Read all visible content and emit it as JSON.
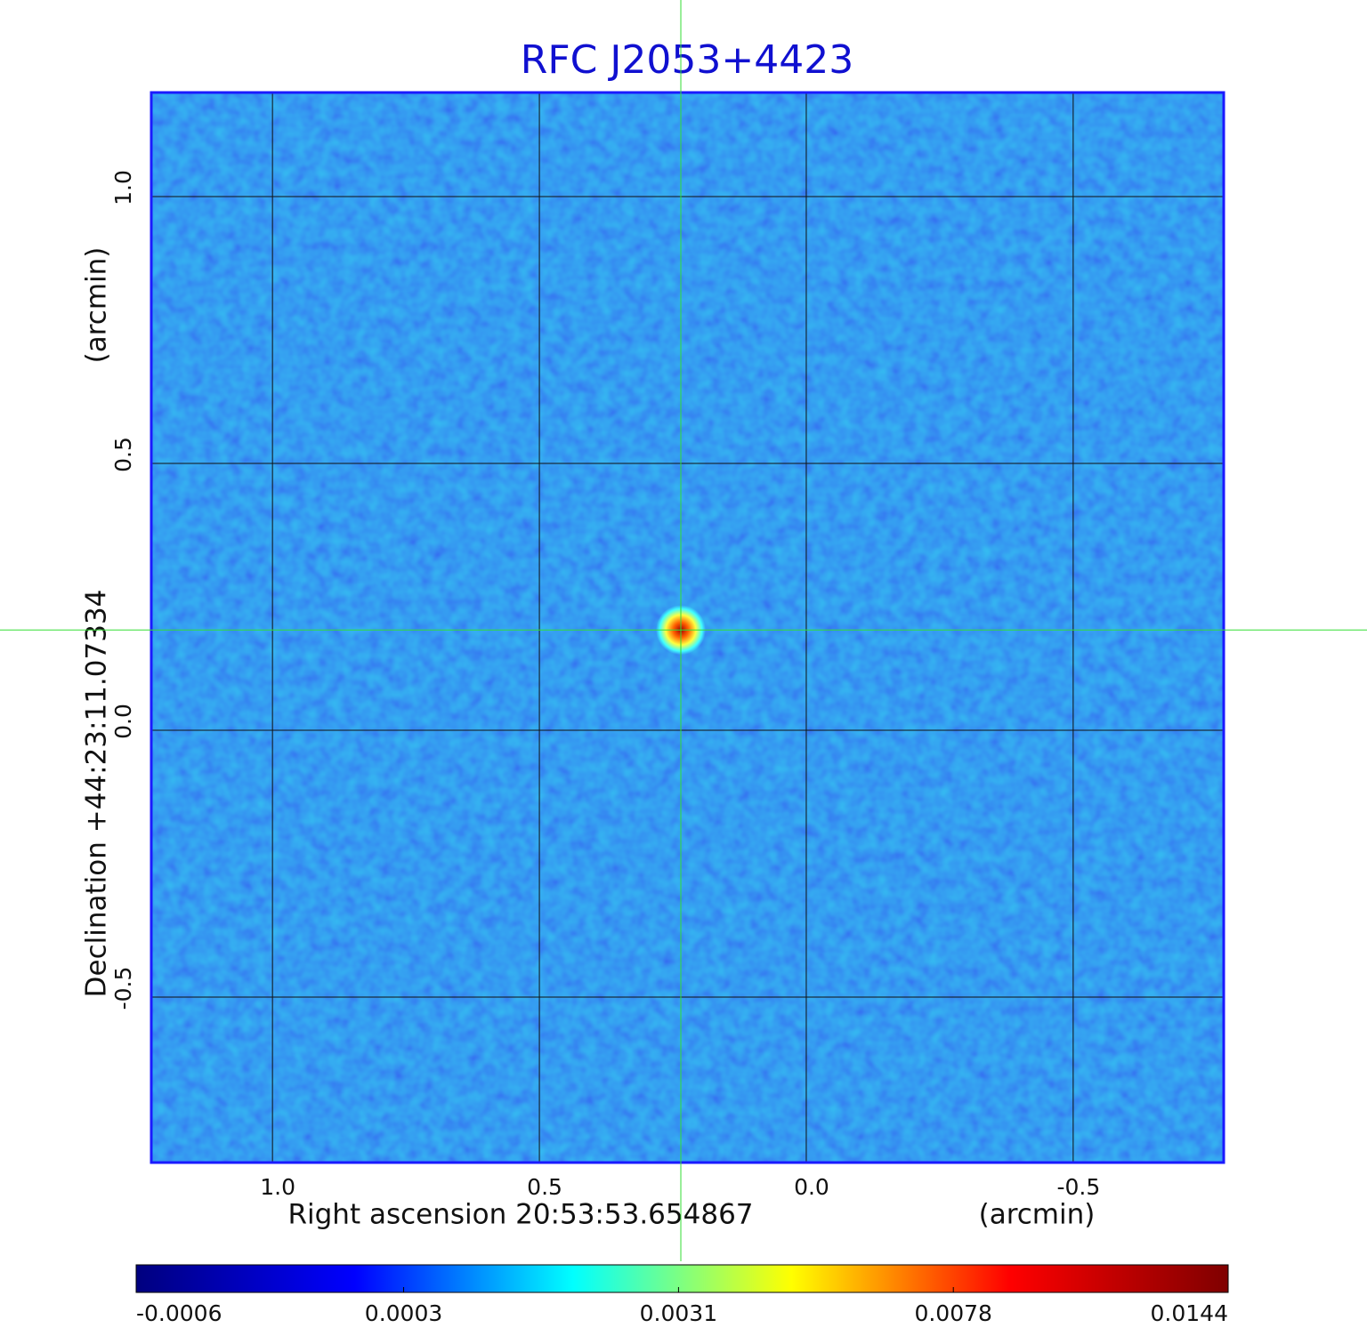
{
  "chart_data": {
    "type": "image",
    "title": "RFC J2053+4423",
    "xlabel": "Right ascension  20:53:53.654867",
    "xunit": "(arcmin)",
    "ylabel": "Declination  +44:23:11.07334",
    "yunit": "(arcmin)",
    "xlim": [
      1.227,
      -0.782
    ],
    "ylim": [
      -0.81,
      1.195
    ],
    "xticks": [
      {
        "value": 1,
        "label": "1.0"
      },
      0.5,
      {
        "value": 0,
        "label": "0.0"
      },
      -0.5
    ],
    "yticks": [
      -0.5,
      {
        "value": 0,
        "label": "0.0"
      },
      0.5,
      {
        "value": 1,
        "label": "1.0"
      }
    ],
    "grid": true,
    "crosshair": {
      "x": 0.235,
      "y": 0.188
    },
    "colorbar": {
      "scale": "sqrt",
      "clim": [
        -0.0006,
        0.0144
      ],
      "ticks": [
        -0.0006,
        0.0003,
        0.0031,
        0.0078,
        0.0144
      ],
      "colors": [
        "#00007f",
        "#0000ff",
        "#00ffff",
        "#ffff00",
        "#ff0000",
        "#7f0000"
      ]
    },
    "title_color": "#1010d0",
    "crosshair_color": "#33dd33"
  }
}
